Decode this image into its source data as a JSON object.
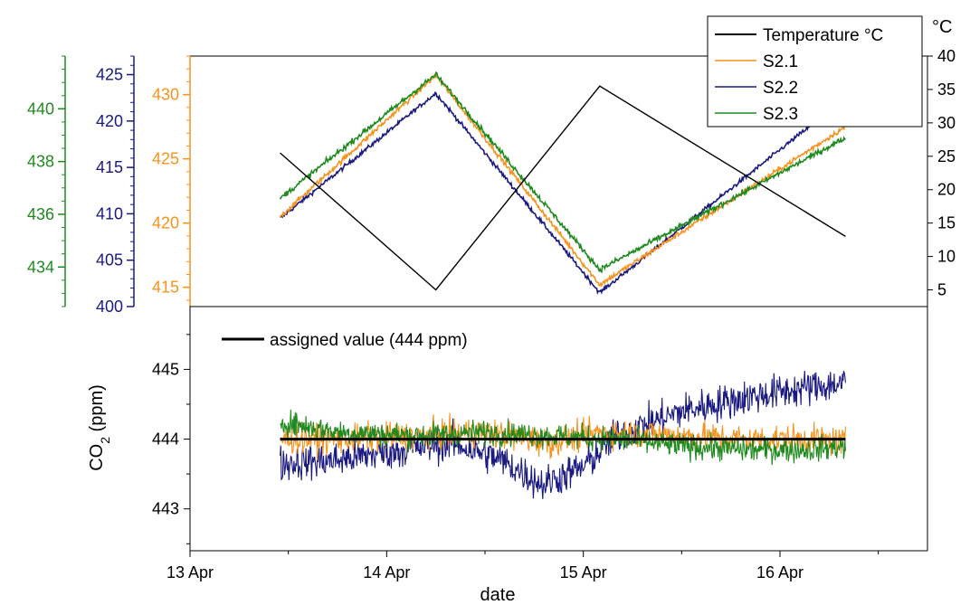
{
  "chart_data": [
    {
      "type": "line",
      "panel": "top",
      "x_unit": "date",
      "legend_placement": "top-right",
      "legend": [
        "Temperature °C",
        "S2.1",
        "S2.2",
        "S2.3"
      ],
      "colors": {
        "temperature": "#000000",
        "S2.1": "#f7931e",
        "S2.2": "#1a1a80",
        "S2.3": "#208a20"
      },
      "axes": {
        "right": {
          "label": "°C",
          "range": [
            2.5,
            40
          ],
          "ticks": [
            5,
            10,
            15,
            20,
            25,
            30,
            35,
            40
          ],
          "tick_labels": [
            "5",
            "10",
            "15",
            "20",
            "25",
            "30",
            "35",
            "40"
          ],
          "color": "#000000"
        },
        "left_orange": {
          "range": [
            413.5,
            433
          ],
          "ticks": [
            415,
            420,
            425,
            430
          ],
          "tick_labels": [
            "415",
            "420",
            "425",
            "430"
          ],
          "color": "#f7931e"
        },
        "left_blue": {
          "range": [
            400,
            427
          ],
          "ticks": [
            400,
            405,
            410,
            415,
            420,
            425
          ],
          "tick_labels": [
            "400",
            "405",
            "410",
            "415",
            "420",
            "425"
          ],
          "color": "#1a1a80"
        },
        "left_green": {
          "range": [
            432.5,
            442
          ],
          "ticks": [
            434,
            436,
            438,
            440
          ],
          "tick_labels": [
            "434",
            "436",
            "438",
            "440"
          ],
          "color": "#208a20"
        }
      },
      "series": [
        {
          "name": "Temperature °C",
          "axis": "right",
          "x": [
            "2023-04-13T11:00",
            "2023-04-14T06:00",
            "2023-04-15T02:00",
            "2023-04-16T08:00"
          ],
          "y": [
            25.5,
            5.0,
            35.5,
            13.0
          ]
        },
        {
          "name": "S2.1",
          "axis": "left_orange",
          "x": [
            "2023-04-13T11:00",
            "2023-04-14T06:00",
            "2023-04-15T02:00",
            "2023-04-16T08:00"
          ],
          "y": [
            420.5,
            431.5,
            415.2,
            427.5
          ]
        },
        {
          "name": "S2.2",
          "axis": "left_blue",
          "x": [
            "2023-04-13T11:00",
            "2023-04-14T06:00",
            "2023-04-15T02:00",
            "2023-04-16T08:00"
          ],
          "y": [
            409.5,
            423.0,
            401.5,
            422.5
          ]
        },
        {
          "name": "S2.3",
          "axis": "left_green",
          "x": [
            "2023-04-13T11:00",
            "2023-04-14T06:00",
            "2023-04-15T02:00",
            "2023-04-16T08:00"
          ],
          "y": [
            436.6,
            441.3,
            433.9,
            438.9
          ]
        }
      ]
    },
    {
      "type": "line",
      "panel": "bottom",
      "xlabel": "date",
      "ylabel": "CO",
      "ylabel_subscript": "2",
      "ylabel_suffix": " (ppm)",
      "ylim": [
        442.4,
        445.9
      ],
      "yticks": [
        443,
        444,
        445
      ],
      "ytick_labels": [
        "443",
        "444",
        "445"
      ],
      "xticks": [
        "13 Apr",
        "14 Apr",
        "15 Apr",
        "16 Apr"
      ],
      "xlim": [
        "2023-04-13T00:00",
        "2023-04-16T18:00"
      ],
      "legend": [
        "assigned value (444 ppm)"
      ],
      "legend_placement": "top-left",
      "assigned_value": 444,
      "series": [
        {
          "name": "S2.1",
          "x": [
            "2023-04-13T11:00",
            "2023-04-13T18:00",
            "2023-04-14T04:00",
            "2023-04-14T12:00",
            "2023-04-14T20:00",
            "2023-04-15T02:00",
            "2023-04-15T12:00",
            "2023-04-15T20:00",
            "2023-04-16T04:00",
            "2023-04-16T08:00"
          ],
          "y": [
            444.0,
            444.0,
            444.05,
            444.1,
            443.95,
            444.1,
            444.05,
            444.0,
            444.0,
            443.95
          ]
        },
        {
          "name": "S2.2",
          "x": [
            "2023-04-13T11:00",
            "2023-04-13T18:00",
            "2023-04-14T02:00",
            "2023-04-14T08:00",
            "2023-04-14T14:00",
            "2023-04-14T19:00",
            "2023-04-15T00:00",
            "2023-04-15T04:00",
            "2023-04-15T12:00",
            "2023-04-15T20:00",
            "2023-04-16T04:00",
            "2023-04-16T08:00"
          ],
          "y": [
            443.65,
            443.7,
            443.85,
            443.95,
            443.7,
            443.35,
            443.6,
            444.05,
            444.4,
            444.6,
            444.75,
            444.8
          ]
        },
        {
          "name": "S2.3",
          "x": [
            "2023-04-13T11:00",
            "2023-04-13T18:00",
            "2023-04-14T04:00",
            "2023-04-14T12:00",
            "2023-04-14T20:00",
            "2023-04-15T04:00",
            "2023-04-15T12:00",
            "2023-04-15T20:00",
            "2023-04-16T04:00",
            "2023-04-16T08:00"
          ],
          "y": [
            444.25,
            444.1,
            444.05,
            444.1,
            444.05,
            444.0,
            443.9,
            443.85,
            443.85,
            443.9
          ]
        }
      ]
    }
  ]
}
